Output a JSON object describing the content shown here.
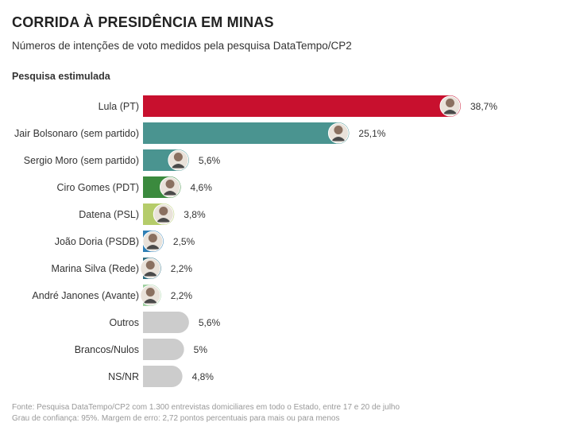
{
  "header": {
    "title": "CORRIDA À PRESIDÊNCIA EM MINAS",
    "subtitle": "Números de intenções de voto medidos pela pesquisa DataTempo/CP2",
    "section": "Pesquisa estimulada"
  },
  "footer": {
    "line1": "Fonte: Pesquisa DataTempo/CP2 com 1.300 entrevistas domiciliares em todo o Estado, entre 17 e 20 de julho",
    "line2": "Grau de confiança: 95%. Margem de erro: 2,72 pontos percentuais para mais ou para menos"
  },
  "chart_data": {
    "type": "bar",
    "orientation": "horizontal",
    "title": "CORRIDA À PRESIDÊNCIA EM MINAS",
    "subtitle": "Números de intenções de voto medidos pela pesquisa DataTempo/CP2",
    "categories": [
      "Lula (PT)",
      "Jair Bolsonaro (sem partido)",
      "Sergio Moro (sem partido)",
      "Ciro Gomes (PDT)",
      "Datena (PSL)",
      "João Doria (PSDB)",
      "Marina Silva (Rede)",
      "André Janones (Avante)",
      "Outros",
      "Brancos/Nulos",
      "NS/NR"
    ],
    "values": [
      38.7,
      25.1,
      5.6,
      4.6,
      3.8,
      2.5,
      2.2,
      2.2,
      5.6,
      5,
      4.8
    ],
    "value_labels": [
      "38,7%",
      "25,1%",
      "5,6%",
      "4,6%",
      "3,8%",
      "2,5%",
      "2,2%",
      "2,2%",
      "5,6%",
      "5%",
      "4,8%"
    ],
    "colors": [
      "#c8102e",
      "#4a9490",
      "#4a9490",
      "#3b8a3e",
      "#b5cc6a",
      "#2f7fb5",
      "#2e6e80",
      "#9fd0a0",
      "#cccccc",
      "#cccccc",
      "#cccccc"
    ],
    "has_avatar": [
      true,
      true,
      true,
      true,
      true,
      true,
      true,
      true,
      false,
      false,
      false
    ],
    "xlim": [
      0,
      38.7
    ],
    "grid": false,
    "legend": "none"
  }
}
